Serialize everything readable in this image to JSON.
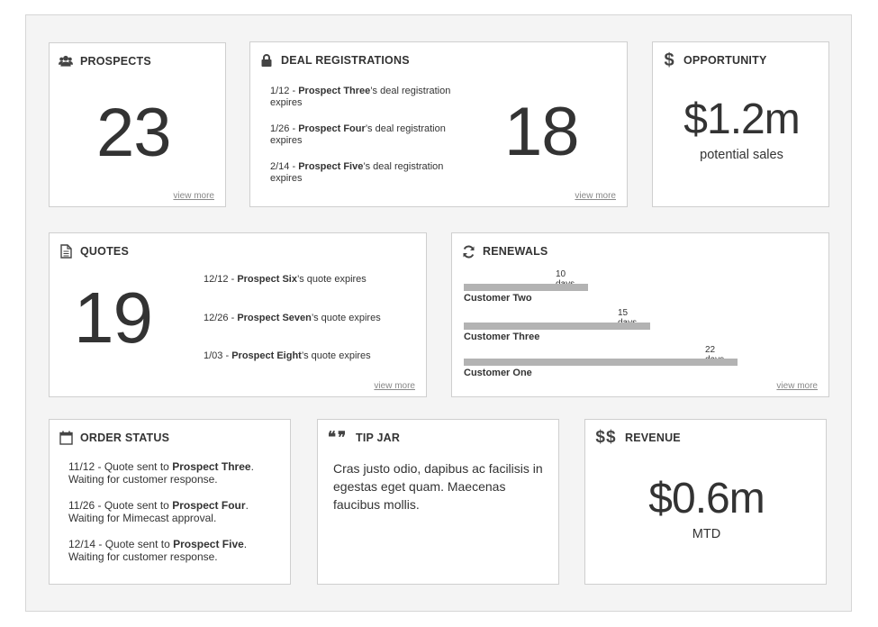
{
  "prospects": {
    "title": "PROSPECTS",
    "icon": "users-icon",
    "count": "23",
    "view_more": "view more"
  },
  "deals": {
    "title": "DEAL REGISTRATIONS",
    "icon": "lock-icon",
    "count": "18",
    "view_more": "view more",
    "items": [
      {
        "date": "1/12",
        "name": "Prospect Three",
        "text": "’s deal registration expires"
      },
      {
        "date": "1/26",
        "name": "Prospect Four",
        "text": "’s deal registration expires"
      },
      {
        "date": "2/14",
        "name": "Prospect Five",
        "text": "’s deal registration expires"
      }
    ]
  },
  "opportunity": {
    "title": "OPPORTUNITY",
    "icon": "dollar-icon",
    "amount": "$1.2m",
    "caption": "potential sales"
  },
  "quotes": {
    "title": "QUOTES",
    "icon": "document-icon",
    "count": "19",
    "view_more": "view more",
    "items": [
      {
        "date": "12/12",
        "name": "Prospect Six",
        "text": "’s quote expires"
      },
      {
        "date": "12/26",
        "name": "Prospect Seven",
        "text": "’s quote expires"
      },
      {
        "date": "1/03",
        "name": "Prospect Eight",
        "text": "’s quote expires"
      }
    ]
  },
  "renewals": {
    "title": "RENEWALS",
    "icon": "refresh-icon",
    "view_more": "view more",
    "max_days": 22,
    "items": [
      {
        "customer": "Customer Two",
        "days": 10,
        "days_label": "10 days"
      },
      {
        "customer": "Customer Three",
        "days": 15,
        "days_label": "15 days"
      },
      {
        "customer": "Customer One",
        "days": 22,
        "days_label": "22 days"
      }
    ]
  },
  "order_status": {
    "title": "ORDER STATUS",
    "icon": "calendar-icon",
    "items": [
      {
        "date": "11/12",
        "pre": "Quote sent to ",
        "name": "Prospect Three",
        "status": "Waiting for customer response."
      },
      {
        "date": "11/26",
        "pre": "Quote sent to ",
        "name": "Prospect Four",
        "status": "Waiting for Mimecast approval."
      },
      {
        "date": "12/14",
        "pre": "Quote sent to ",
        "name": "Prospect Five",
        "status": "Waiting for customer response."
      }
    ]
  },
  "tip_jar": {
    "title": "TIP JAR",
    "icon": "quote-icon",
    "text": "Cras justo odio, dapibus ac facilisis in egestas eget quam. Maecenas faucibus mollis."
  },
  "revenue": {
    "title": "REVENUE",
    "icon": "double-dollar-icon",
    "amount": "$0.6m",
    "caption": "MTD"
  },
  "colors": {
    "bar": "#b3b3b3",
    "text": "#333333",
    "panel": "#f4f4f4"
  }
}
